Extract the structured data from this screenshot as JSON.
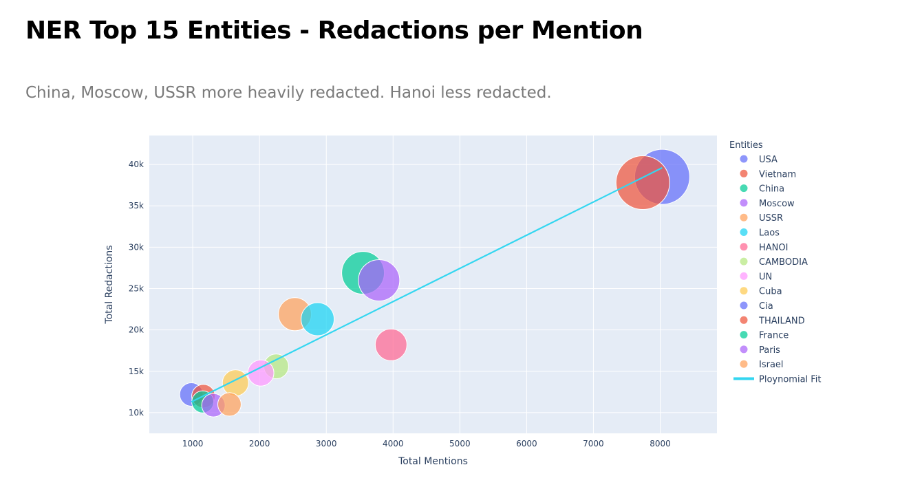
{
  "header": {
    "title": "NER Top 15 Entities - Redactions per Mention",
    "subtitle": "China, Moscow, USSR more heavily redacted. Hanoi less redacted."
  },
  "chart_data": {
    "type": "scatter",
    "xlabel": "Total Mentions",
    "ylabel": "Total Redactions",
    "xlim": [
      350,
      8850
    ],
    "ylim": [
      7500,
      43500
    ],
    "x_ticks": [
      1000,
      2000,
      3000,
      4000,
      5000,
      6000,
      7000,
      8000
    ],
    "x_tick_labels": [
      "1000",
      "2000",
      "3000",
      "4000",
      "5000",
      "6000",
      "7000",
      "8000"
    ],
    "y_ticks": [
      10000,
      15000,
      20000,
      25000,
      30000,
      35000,
      40000
    ],
    "y_tick_labels": [
      "10k",
      "15k",
      "20k",
      "25k",
      "30k",
      "35k",
      "40k"
    ],
    "grid": true,
    "plot_background": "#e5ecf6",
    "legend_title": "Entities",
    "legend_position": "right",
    "series": [
      {
        "name": "USA",
        "color": "#636efa",
        "x": 8030,
        "y": 38500,
        "size": 40
      },
      {
        "name": "Vietnam",
        "color": "#ef553b",
        "x": 7740,
        "y": 37800,
        "size": 39
      },
      {
        "name": "China",
        "color": "#00cc96",
        "x": 3550,
        "y": 26900,
        "size": 31
      },
      {
        "name": "Moscow",
        "color": "#ab63fa",
        "x": 3790,
        "y": 26000,
        "size": 30
      },
      {
        "name": "USSR",
        "color": "#ffa15a",
        "x": 2530,
        "y": 21900,
        "size": 24
      },
      {
        "name": "Laos",
        "color": "#19d3f3",
        "x": 2870,
        "y": 21300,
        "size": 24
      },
      {
        "name": "HANOI",
        "color": "#ff6692",
        "x": 3970,
        "y": 18200,
        "size": 23
      },
      {
        "name": "CAMBODIA",
        "color": "#b6e880",
        "x": 2250,
        "y": 15600,
        "size": 18
      },
      {
        "name": "UN",
        "color": "#ff97ff",
        "x": 2020,
        "y": 14800,
        "size": 19
      },
      {
        "name": "Cuba",
        "color": "#fecb52",
        "x": 1640,
        "y": 13600,
        "size": 19
      },
      {
        "name": "Cia",
        "color": "#636efa",
        "x": 980,
        "y": 12200,
        "size": 17
      },
      {
        "name": "THAILAND",
        "color": "#ef553b",
        "x": 1160,
        "y": 12000,
        "size": 17
      },
      {
        "name": "France",
        "color": "#00cc96",
        "x": 1150,
        "y": 11300,
        "size": 16
      },
      {
        "name": "Paris",
        "color": "#ab63fa",
        "x": 1310,
        "y": 10900,
        "size": 17
      },
      {
        "name": "Israel",
        "color": "#ffa15a",
        "x": 1550,
        "y": 11000,
        "size": 17
      }
    ],
    "fit_line": {
      "name": "Ploynomial Fit",
      "color": "#33d6f0",
      "x": [
        980,
        8030
      ],
      "y": [
        11300,
        39600
      ]
    }
  }
}
